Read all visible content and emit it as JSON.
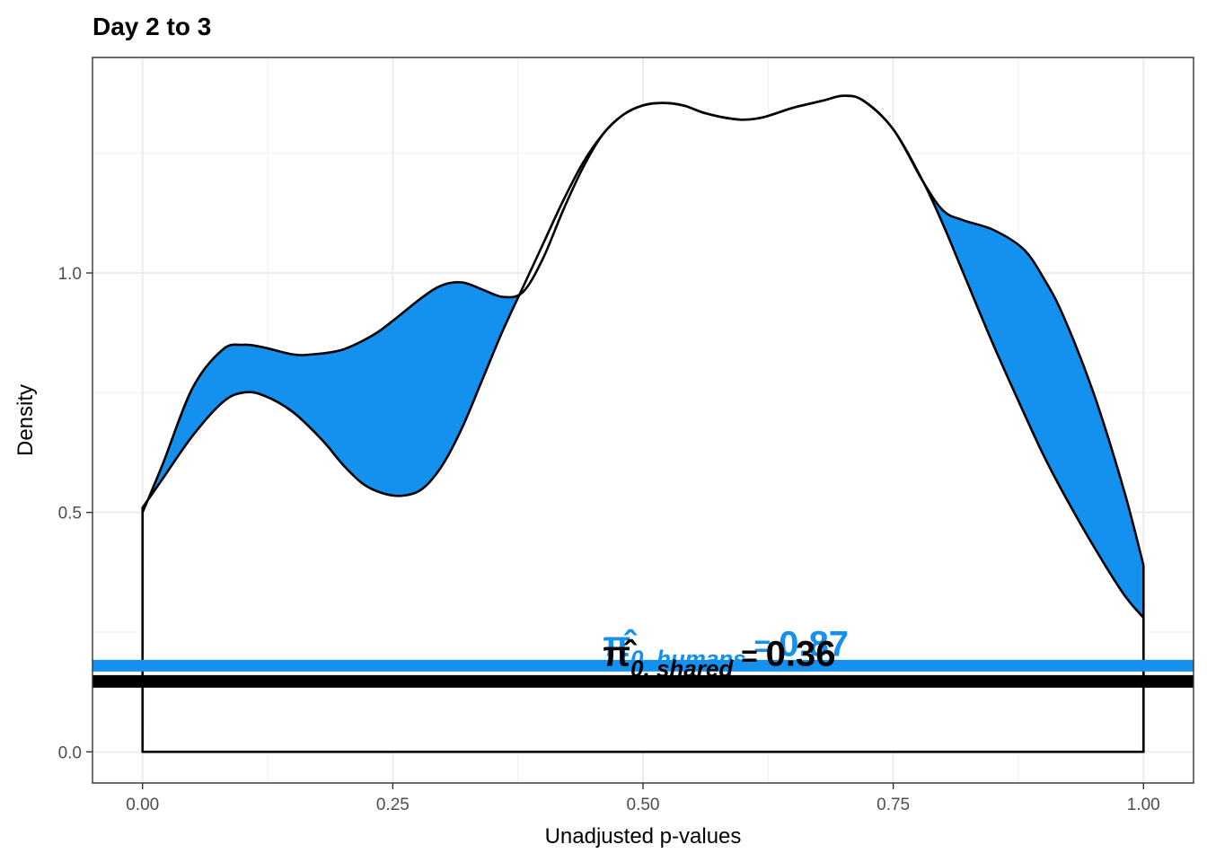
{
  "chart_data": {
    "type": "area",
    "title": "Day 2 to 3",
    "xlabel": "Unadjusted p-values",
    "ylabel": "Density",
    "xlim": [
      -0.05,
      1.05
    ],
    "ylim": [
      -0.065,
      1.45
    ],
    "x_ticks": [
      {
        "value": 0,
        "label": "0.00"
      },
      {
        "value": 0.25,
        "label": "0.25"
      },
      {
        "value": 0.5,
        "label": "0.50"
      },
      {
        "value": 0.75,
        "label": "0.75"
      },
      {
        "value": 1,
        "label": "1.00"
      }
    ],
    "y_ticks": [
      {
        "value": 0,
        "label": "0.0"
      },
      {
        "value": 0.5,
        "label": "0.5"
      },
      {
        "value": 1,
        "label": "1.0"
      }
    ],
    "grid": true,
    "colors": {
      "humans": "#1490EE",
      "shared": "#000000"
    },
    "series": [
      {
        "key": "humans",
        "outline_only": true,
        "x": [
          0.0,
          0.02,
          0.05,
          0.08,
          0.1,
          0.12,
          0.15,
          0.17,
          0.2,
          0.23,
          0.25,
          0.28,
          0.3,
          0.32,
          0.34,
          0.36,
          0.38,
          0.4,
          0.42,
          0.44,
          0.46,
          0.48,
          0.5,
          0.52,
          0.54,
          0.56,
          0.58,
          0.6,
          0.62,
          0.65,
          0.68,
          0.7,
          0.72,
          0.75,
          0.78,
          0.8,
          0.82,
          0.85,
          0.88,
          0.9,
          0.92,
          0.95,
          0.98,
          1.0
        ],
        "y": [
          0.5,
          0.6,
          0.76,
          0.84,
          0.85,
          0.845,
          0.83,
          0.83,
          0.84,
          0.87,
          0.9,
          0.95,
          0.975,
          0.98,
          0.965,
          0.95,
          0.96,
          1.03,
          1.13,
          1.22,
          1.29,
          1.33,
          1.35,
          1.355,
          1.35,
          1.335,
          1.325,
          1.32,
          1.325,
          1.345,
          1.36,
          1.37,
          1.36,
          1.3,
          1.19,
          1.13,
          1.11,
          1.09,
          1.05,
          0.99,
          0.91,
          0.75,
          0.55,
          0.39
        ]
      },
      {
        "key": "shared",
        "outline_only": false,
        "x": [
          0.0,
          0.02,
          0.05,
          0.08,
          0.1,
          0.12,
          0.15,
          0.18,
          0.2,
          0.22,
          0.24,
          0.26,
          0.28,
          0.3,
          0.32,
          0.34,
          0.36,
          0.38,
          0.4,
          0.42,
          0.44,
          0.46,
          0.48,
          0.5,
          0.52,
          0.54,
          0.56,
          0.58,
          0.6,
          0.62,
          0.65,
          0.68,
          0.7,
          0.72,
          0.75,
          0.78,
          0.8,
          0.82,
          0.85,
          0.88,
          0.9,
          0.92,
          0.95,
          0.98,
          1.0
        ],
        "y": [
          0.51,
          0.57,
          0.66,
          0.73,
          0.75,
          0.745,
          0.71,
          0.65,
          0.6,
          0.56,
          0.54,
          0.535,
          0.55,
          0.6,
          0.68,
          0.78,
          0.88,
          0.97,
          1.06,
          1.15,
          1.23,
          1.29,
          1.33,
          1.35,
          1.355,
          1.35,
          1.335,
          1.325,
          1.32,
          1.325,
          1.345,
          1.36,
          1.37,
          1.36,
          1.3,
          1.19,
          1.1,
          1.0,
          0.85,
          0.71,
          0.62,
          0.54,
          0.43,
          0.33,
          0.28
        ]
      }
    ],
    "hlines": [
      {
        "key": "humans",
        "value": 0.18
      },
      {
        "key": "shared",
        "value": 0.147
      }
    ],
    "annotations": [
      {
        "key": "humans",
        "symbol": "π̂",
        "subscript": "0, humans",
        "equals": " = ",
        "value": "0.87",
        "x": 0.46,
        "y": 0.2
      },
      {
        "key": "shared",
        "symbol": "π̂",
        "subscript": "0, shared",
        "equals": " = ",
        "value": "0.36",
        "x": 0.46,
        "y": 0.18
      }
    ]
  }
}
